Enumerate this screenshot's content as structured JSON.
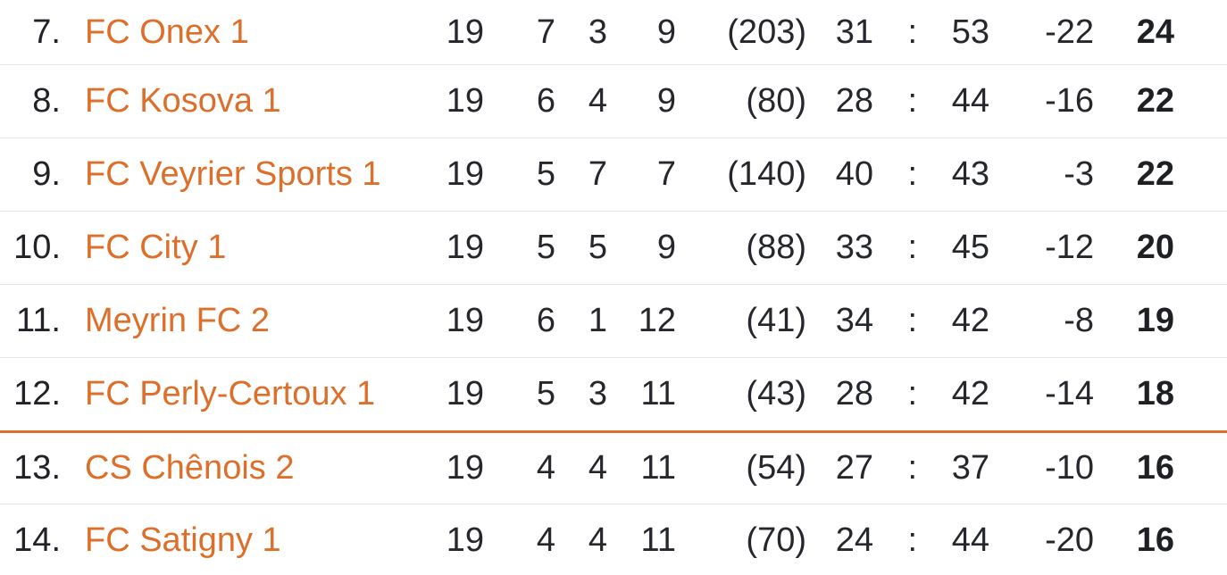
{
  "colors": {
    "team_link": "#dd6f2a",
    "divider_line": "#d8702e",
    "row_separator": "#e4e4e8",
    "text": "#25272c",
    "points_text": "#1e2023",
    "background": "#ffffff"
  },
  "table": {
    "colon": ":",
    "rows": [
      {
        "rank": "7.",
        "team": "FC Onex 1",
        "played": "19",
        "won": "7",
        "drawn": "3",
        "lost": "9",
        "paren": "(203)",
        "goals_for": "31",
        "goals_against": "53",
        "diff": "-22",
        "points": "24"
      },
      {
        "rank": "8.",
        "team": "FC Kosova 1",
        "played": "19",
        "won": "6",
        "drawn": "4",
        "lost": "9",
        "paren": "(80)",
        "goals_for": "28",
        "goals_against": "44",
        "diff": "-16",
        "points": "22"
      },
      {
        "rank": "9.",
        "team": "FC Veyrier Sports 1",
        "played": "19",
        "won": "5",
        "drawn": "7",
        "lost": "7",
        "paren": "(140)",
        "goals_for": "40",
        "goals_against": "43",
        "diff": "-3",
        "points": "22"
      },
      {
        "rank": "10.",
        "team": "FC City 1",
        "played": "19",
        "won": "5",
        "drawn": "5",
        "lost": "9",
        "paren": "(88)",
        "goals_for": "33",
        "goals_against": "45",
        "diff": "-12",
        "points": "20"
      },
      {
        "rank": "11.",
        "team": "Meyrin FC 2",
        "played": "19",
        "won": "6",
        "drawn": "1",
        "lost": "12",
        "paren": "(41)",
        "goals_for": "34",
        "goals_against": "42",
        "diff": "-8",
        "points": "19"
      },
      {
        "rank": "12.",
        "team": "FC Perly-Certoux 1",
        "played": "19",
        "won": "5",
        "drawn": "3",
        "lost": "11",
        "paren": "(43)",
        "goals_for": "28",
        "goals_against": "42",
        "diff": "-14",
        "points": "18"
      },
      {
        "rank": "13.",
        "team": "CS Chênois 2",
        "played": "19",
        "won": "4",
        "drawn": "4",
        "lost": "11",
        "paren": "(54)",
        "goals_for": "27",
        "goals_against": "37",
        "diff": "-10",
        "points": "16"
      },
      {
        "rank": "14.",
        "team": "FC Satigny 1",
        "played": "19",
        "won": "4",
        "drawn": "4",
        "lost": "11",
        "paren": "(70)",
        "goals_for": "24",
        "goals_against": "44",
        "diff": "-20",
        "points": "16"
      }
    ]
  }
}
